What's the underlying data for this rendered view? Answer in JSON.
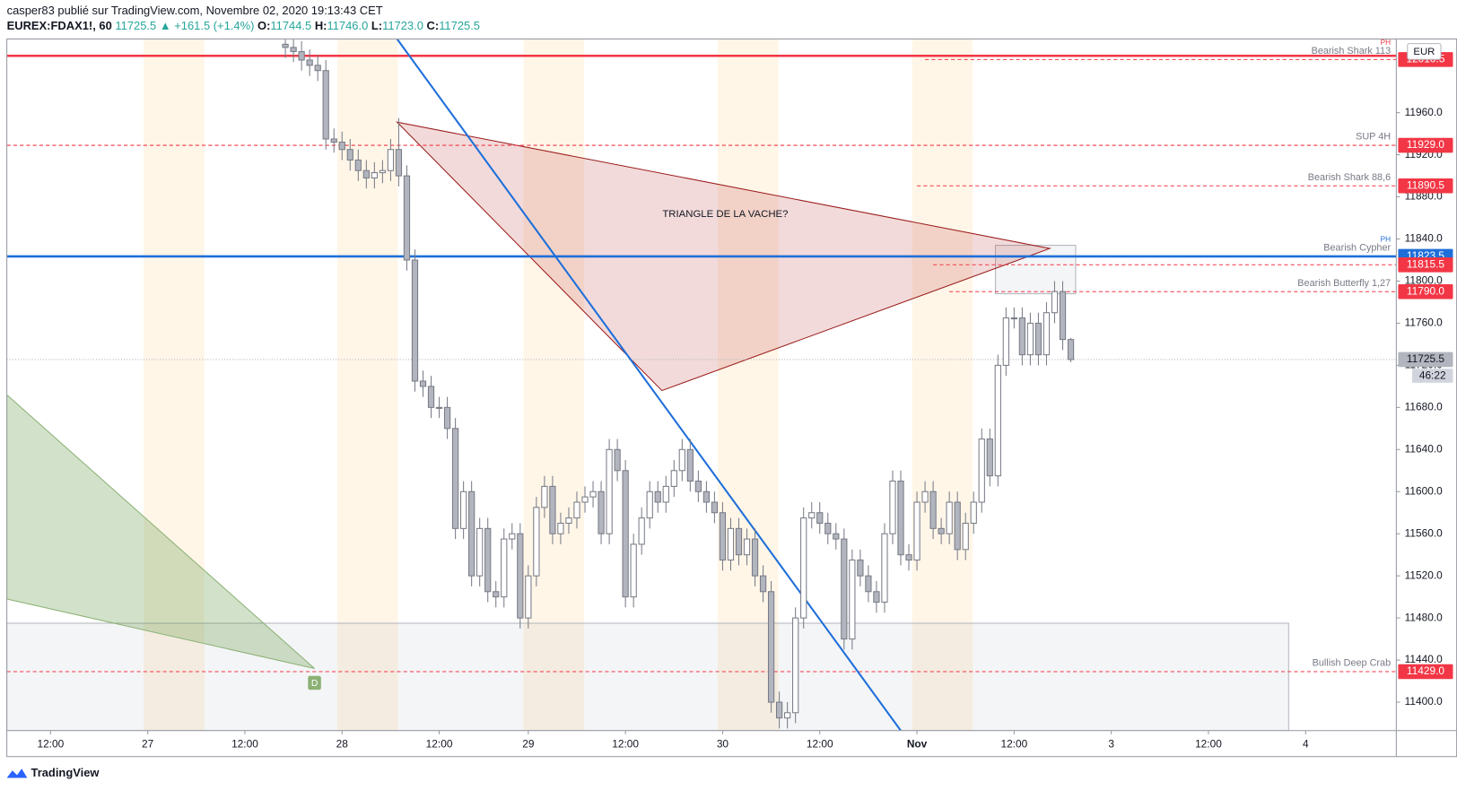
{
  "header": {
    "author_line": "casper83 publié sur TradingView.com, Novembre 02, 2020 19:13:43 CET",
    "symbol": "EUREX:FDAX1!, 60",
    "last": "11725.5",
    "change": "▲ +161.5 (+1.4%)",
    "ohlc": [
      {
        "label": "O:",
        "value": "11744.5"
      },
      {
        "label": "H:",
        "value": "11746.0"
      },
      {
        "label": "L:",
        "value": "11723.0"
      },
      {
        "label": "C:",
        "value": "11725.5"
      }
    ]
  },
  "footer": {
    "brand": "TradingView"
  },
  "chart_data": {
    "type": "candlestick",
    "currency": "EUR",
    "countdown": "46:22",
    "up_color": "#ffffff",
    "down_color": "#b2b5be",
    "border_color": "#787b86",
    "xlim": [
      -5.4,
      166.2
    ],
    "ylim": [
      11373,
      12030
    ],
    "xticks": [
      {
        "value": 0,
        "label": "12:00"
      },
      {
        "value": 12,
        "label": "27"
      },
      {
        "value": 24,
        "label": "12:00"
      },
      {
        "value": 36,
        "label": "28"
      },
      {
        "value": 48,
        "label": "12:00"
      },
      {
        "value": 59,
        "label": "29"
      },
      {
        "value": 71,
        "label": "12:00"
      },
      {
        "value": 83,
        "label": "30"
      },
      {
        "value": 95,
        "label": "12:00"
      },
      {
        "value": 107,
        "label": "Nov"
      },
      {
        "value": 119,
        "label": "12:00"
      },
      {
        "value": 131,
        "label": "3"
      },
      {
        "value": 143,
        "label": "12:00"
      },
      {
        "value": 155,
        "label": "4"
      }
    ],
    "yticks": [
      {
        "value": 11400,
        "label": "11400.0"
      },
      {
        "value": 11440,
        "label": "11440.0"
      },
      {
        "value": 11480,
        "label": "11480.0"
      },
      {
        "value": 11520,
        "label": "11520.0"
      },
      {
        "value": 11560,
        "label": "11560.0"
      },
      {
        "value": 11600,
        "label": "11600.0"
      },
      {
        "value": 11640,
        "label": "11640.0"
      },
      {
        "value": 11680,
        "label": "11680.0"
      },
      {
        "value": 11720,
        "label": "11720.0"
      },
      {
        "value": 11760,
        "label": "11760.0"
      },
      {
        "value": 11800,
        "label": "11800.0"
      },
      {
        "value": 11840,
        "label": "11840.0"
      },
      {
        "value": 11880,
        "label": "11880.0"
      },
      {
        "value": 11920,
        "label": "11920.0"
      },
      {
        "value": 11960,
        "label": "11960.0"
      }
    ],
    "x": [
      29,
      30,
      31,
      32,
      33,
      34,
      35,
      36,
      37,
      38,
      39,
      40,
      41,
      42,
      43,
      44,
      45,
      46,
      47,
      48,
      49,
      50,
      51,
      52,
      53,
      54,
      55,
      56,
      57,
      58,
      59,
      60,
      61,
      62,
      63,
      64,
      65,
      66,
      67,
      68,
      69,
      70,
      71,
      72,
      73,
      74,
      75,
      76,
      77,
      78,
      79,
      80,
      81,
      82,
      83,
      84,
      85,
      86,
      87,
      88,
      89,
      90,
      91,
      92,
      93,
      94,
      95,
      96,
      97,
      98,
      99,
      100,
      101,
      102,
      103,
      104,
      105,
      106,
      107,
      108,
      109,
      110,
      111,
      112,
      113,
      114,
      115,
      116,
      117,
      118,
      119,
      120,
      121,
      122,
      123,
      124,
      125,
      126
    ],
    "open": [
      12025,
      12022,
      12018,
      12010,
      12005,
      12000,
      11935,
      11932,
      11925,
      11915,
      11905,
      11898,
      11903,
      11905,
      11925,
      11900,
      11820,
      11705,
      11700,
      11680,
      11680,
      11660,
      11565,
      11600,
      11520,
      11565,
      11505,
      11500,
      11555,
      11560,
      11480,
      11520,
      11585,
      11605,
      11560,
      11570,
      11575,
      11590,
      11595,
      11600,
      11560,
      11640,
      11620,
      11500,
      11550,
      11575,
      11600,
      11590,
      11605,
      11620,
      11640,
      11610,
      11600,
      11590,
      11580,
      11535,
      11565,
      11540,
      11555,
      11520,
      11505,
      11400,
      11385,
      11390,
      11480,
      11575,
      11580,
      11570,
      11560,
      11555,
      11460,
      11535,
      11520,
      11505,
      11495,
      11560,
      11610,
      11540,
      11535,
      11590,
      11600,
      11565,
      11560,
      11590,
      11545,
      11570,
      11590,
      11650,
      11615,
      11720,
      11765,
      11765,
      11730,
      11760,
      11730,
      11770,
      11790,
      11744.5
    ],
    "high": [
      12035,
      12032,
      12028,
      12020,
      12015,
      12010,
      11945,
      11942,
      11935,
      11925,
      11915,
      11913,
      11915,
      11935,
      11955,
      11910,
      11830,
      11715,
      11710,
      11690,
      11690,
      11670,
      11610,
      11610,
      11575,
      11575,
      11515,
      11565,
      11570,
      11570,
      11530,
      11595,
      11615,
      11615,
      11580,
      11585,
      11600,
      11605,
      11610,
      11610,
      11650,
      11650,
      11630,
      11560,
      11585,
      11610,
      11610,
      11615,
      11630,
      11650,
      11650,
      11620,
      11610,
      11600,
      11590,
      11575,
      11575,
      11565,
      11565,
      11530,
      11515,
      11410,
      11400,
      11490,
      11585,
      11590,
      11590,
      11580,
      11570,
      11565,
      11545,
      11545,
      11530,
      11515,
      11570,
      11620,
      11620,
      11550,
      11600,
      11610,
      11610,
      11575,
      11600,
      11600,
      11580,
      11600,
      11660,
      11660,
      11730,
      11775,
      11775,
      11775,
      11770,
      11770,
      11780,
      11800,
      11800,
      11746
    ],
    "low": [
      12012,
      12008,
      12000,
      11995,
      11990,
      11925,
      11922,
      11915,
      11905,
      11895,
      11888,
      11888,
      11893,
      11895,
      11890,
      11810,
      11695,
      11690,
      11670,
      11670,
      11650,
      11555,
      11555,
      11510,
      11510,
      11495,
      11490,
      11490,
      11545,
      11470,
      11470,
      11510,
      11575,
      11550,
      11550,
      11560,
      11565,
      11580,
      11585,
      11550,
      11550,
      11610,
      11490,
      11490,
      11540,
      11565,
      11580,
      11580,
      11595,
      11610,
      11600,
      11590,
      11580,
      11570,
      11525,
      11525,
      11530,
      11530,
      11510,
      11495,
      11390,
      11375,
      11375,
      11380,
      11470,
      11565,
      11560,
      11550,
      11545,
      11450,
      11450,
      11510,
      11495,
      11485,
      11485,
      11550,
      11530,
      11525,
      11525,
      11580,
      11555,
      11550,
      11550,
      11535,
      11535,
      11560,
      11580,
      11605,
      11605,
      11710,
      11755,
      11720,
      11720,
      11720,
      11720,
      11760,
      11734.5,
      11723
    ],
    "close": [
      12022,
      12018,
      12010,
      12005,
      12000,
      11935,
      11932,
      11925,
      11915,
      11905,
      11898,
      11903,
      11905,
      11925,
      11900,
      11820,
      11705,
      11700,
      11680,
      11680,
      11660,
      11565,
      11600,
      11520,
      11565,
      11505,
      11500,
      11555,
      11560,
      11480,
      11520,
      11585,
      11605,
      11560,
      11570,
      11575,
      11590,
      11595,
      11600,
      11560,
      11640,
      11620,
      11500,
      11550,
      11575,
      11600,
      11590,
      11605,
      11620,
      11640,
      11610,
      11600,
      11590,
      11580,
      11535,
      11565,
      11540,
      11555,
      11520,
      11505,
      11400,
      11385,
      11390,
      11480,
      11575,
      11580,
      11570,
      11560,
      11555,
      11460,
      11535,
      11520,
      11505,
      11495,
      11560,
      11610,
      11540,
      11535,
      11590,
      11600,
      11565,
      11560,
      11590,
      11545,
      11570,
      11590,
      11650,
      11615,
      11720,
      11765,
      11765,
      11730,
      11760,
      11730,
      11770,
      11790,
      11744.5,
      11725.5
    ],
    "sessions": [
      [
        11.5,
        19
      ],
      [
        35.4,
        42.9
      ],
      [
        58.4,
        65.9
      ],
      [
        82.4,
        89.9
      ],
      [
        106.4,
        113.9
      ]
    ],
    "zones": [
      {
        "x": [
          -5.4,
          152.9
        ],
        "y": [
          11373,
          11475
        ]
      },
      {
        "x": [
          116.7,
          126.6
        ],
        "y": [
          11788,
          11834
        ]
      }
    ],
    "levels": [
      {
        "value": 12014,
        "color": "#f23645",
        "style": "solid"
      },
      {
        "value": 12010.5,
        "name": "Bearish Shark 113",
        "marker": "PH",
        "color": "#f23645",
        "style": "dashed",
        "from": 108,
        "tag": true
      },
      {
        "value": 11929,
        "label": "11929.0",
        "name": "SUP 4H",
        "color": "#f23645",
        "style": "dashed",
        "tag": true
      },
      {
        "value": 11890.5,
        "name": "Bearish Shark 88,6",
        "color": "#f23645",
        "style": "dashed",
        "from": 107,
        "tag": true
      },
      {
        "value": 11823.5,
        "name": "Bearish Cypher",
        "marker": "PH",
        "color": "#1e6fd9",
        "style": "solid",
        "tag": true
      },
      {
        "value": 11815.5,
        "color": "#f23645",
        "style": "dashed",
        "from": 109,
        "tag": true
      },
      {
        "value": 11790,
        "label": "11790.0",
        "name": "Bearish Butterfly 1,27",
        "color": "#f23645",
        "style": "dashed",
        "from": 111,
        "tag": true
      },
      {
        "value": 11429,
        "label": "11429.0",
        "name": "Bullish Deep Crab",
        "color": "#f23645",
        "style": "dashed",
        "tag": true
      },
      {
        "value": 11725.5,
        "color": "#b2b5be",
        "style": "dotted",
        "tag": true,
        "last": true
      }
    ],
    "pattern": {
      "label": "TRIANGLE DE LA VACHE?",
      "points": [
        [
          42.8,
          11951
        ],
        [
          75.5,
          11696
        ],
        [
          123.4,
          11831
        ]
      ]
    },
    "harmonic": {
      "label": "D",
      "points": [
        [
          -5.4,
          11692
        ],
        [
          -5.4,
          11498
        ],
        [
          32.6,
          11432
        ]
      ]
    },
    "trendline": [
      [
        42.8,
        12030
      ],
      [
        105,
        11373
      ]
    ]
  }
}
